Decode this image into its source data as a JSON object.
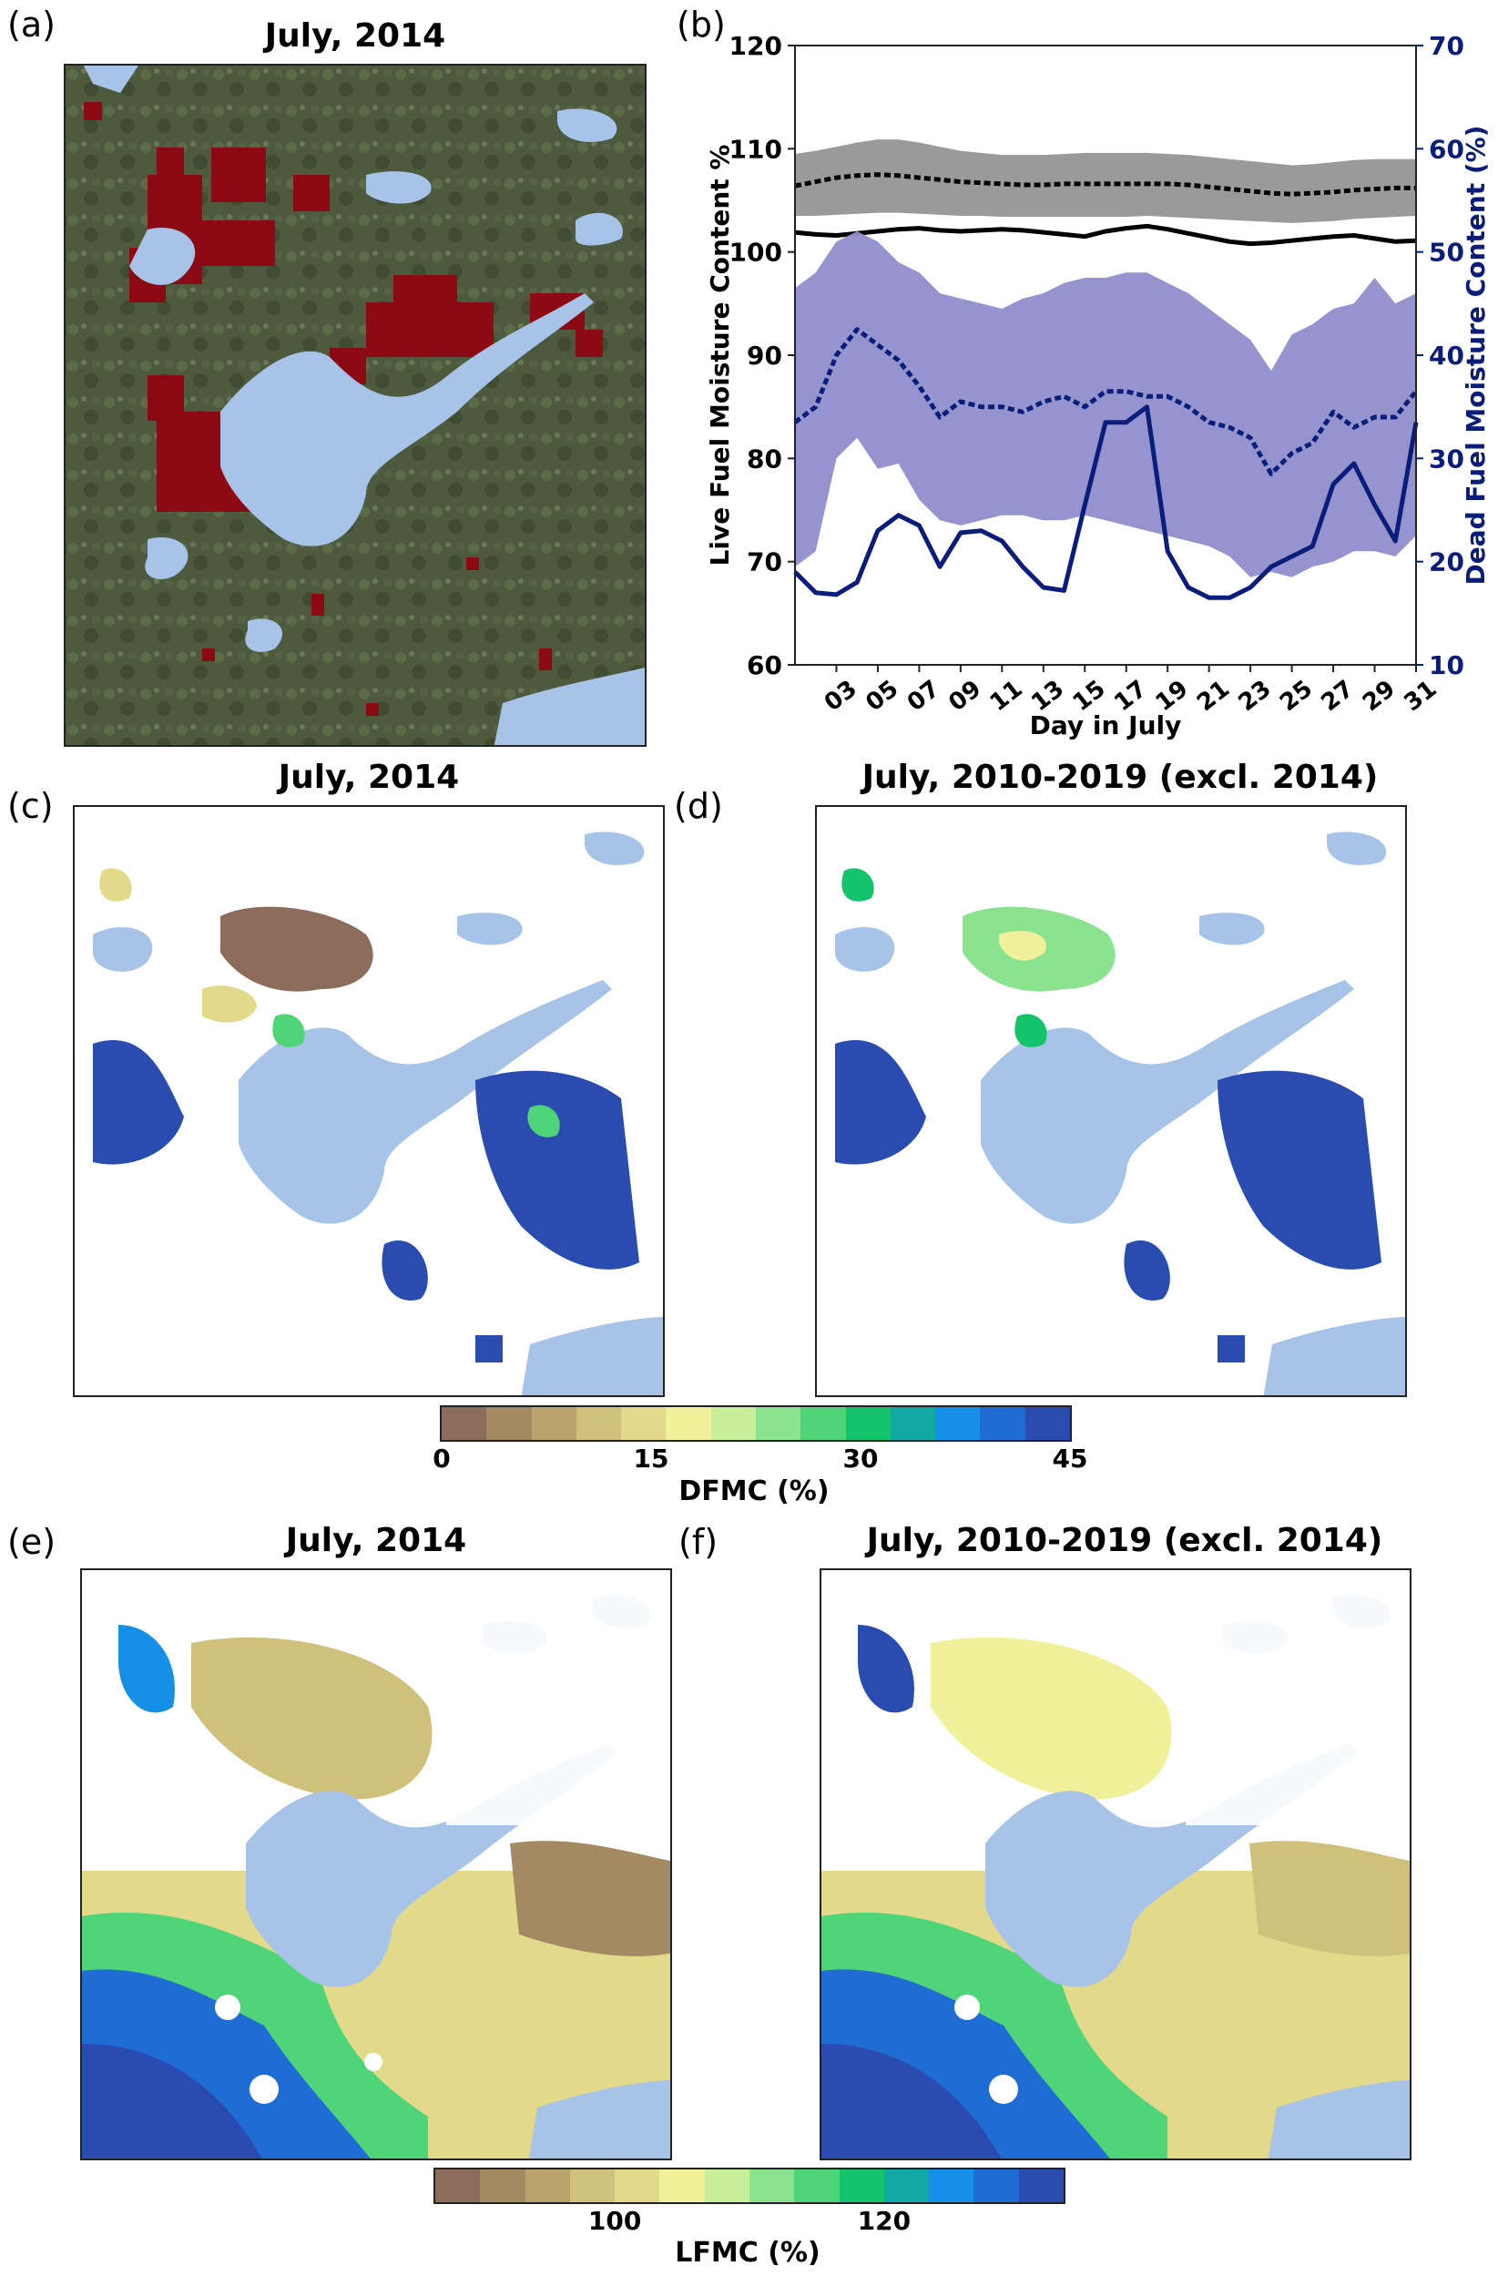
{
  "panels": {
    "a": {
      "label": "(a)",
      "title": "July, 2014"
    },
    "b": {
      "label": "(b)"
    },
    "c": {
      "label": "(c)",
      "title": "July, 2014"
    },
    "d": {
      "label": "(d)",
      "title": "July, 2010-2019 (excl. 2014)"
    },
    "e": {
      "label": "(e)",
      "title": "July, 2014"
    },
    "f": {
      "label": "(f)",
      "title": "July, 2010-2019 (excl. 2014)"
    }
  },
  "colorbars": {
    "dfmc": {
      "label": "DFMC (%)",
      "ticks": [
        "0",
        "15",
        "30",
        "45"
      ],
      "colors": [
        "#8c6d5c",
        "#a38a63",
        "#b9a36c",
        "#cfc17b",
        "#e2da8a",
        "#f0f19a",
        "#c8ef9b",
        "#8be38f",
        "#4fd47a",
        "#14c36b",
        "#12a9a4",
        "#1590e6",
        "#1f6dd4",
        "#2a4cb0"
      ]
    },
    "lfmc": {
      "label": "LFMC (%)",
      "ticks": [
        "100",
        "120"
      ],
      "colors": [
        "#8c6d5c",
        "#a38a63",
        "#b9a36c",
        "#cfc17b",
        "#e2da8a",
        "#f0f19a",
        "#c8ef9b",
        "#8be38f",
        "#4fd47a",
        "#14c36b",
        "#12a9a4",
        "#1590e6",
        "#1f6dd4",
        "#2a4cb0"
      ]
    }
  },
  "colors": {
    "water": "#a8c3e8",
    "burn": "#8b0a14",
    "terrain": "#4c5a3c",
    "dead_line": "#0b1d7a",
    "dead_band": "#8f8ecb",
    "live_band": "#9a9a9a",
    "live_line": "#000000"
  },
  "chart_data": {
    "type": "line",
    "x": [
      "01",
      "02",
      "03",
      "04",
      "05",
      "06",
      "07",
      "08",
      "09",
      "10",
      "11",
      "12",
      "13",
      "14",
      "15",
      "16",
      "17",
      "18",
      "19",
      "20",
      "21",
      "22",
      "23",
      "24",
      "25",
      "26",
      "27",
      "28",
      "29",
      "30",
      "31"
    ],
    "x_tick_labels": [
      "03",
      "05",
      "07",
      "09",
      "11",
      "13",
      "15",
      "17",
      "19",
      "21",
      "23",
      "25",
      "27",
      "29",
      "31"
    ],
    "xlabel": "Day in July",
    "ylabel": "Live Fuel Moisture Content %",
    "ylim": [
      60,
      120
    ],
    "yticks": [
      "60",
      "70",
      "80",
      "90",
      "100",
      "110",
      "120"
    ],
    "y2label": "Dead Fuel Moisture Content (%)",
    "y2lim": [
      10,
      70
    ],
    "y2ticks": [
      "10",
      "20",
      "30",
      "40",
      "50",
      "60",
      "70"
    ],
    "series": [
      {
        "axis": "left",
        "style": "band",
        "lower": [
          103.5,
          103.5,
          103.6,
          103.7,
          103.8,
          103.8,
          103.7,
          103.6,
          103.5,
          103.5,
          103.4,
          103.4,
          103.4,
          103.4,
          103.4,
          103.4,
          103.4,
          103.5,
          103.4,
          103.3,
          103.2,
          103.1,
          103.0,
          102.9,
          102.8,
          102.9,
          103.0,
          103.2,
          103.3,
          103.4,
          103.5
        ],
        "upper": [
          109.5,
          109.8,
          110.2,
          110.6,
          110.9,
          110.9,
          110.6,
          110.2,
          109.8,
          109.6,
          109.4,
          109.4,
          109.4,
          109.5,
          109.6,
          109.6,
          109.6,
          109.6,
          109.5,
          109.4,
          109.2,
          109.0,
          108.8,
          108.6,
          108.4,
          108.5,
          108.7,
          108.9,
          109.0,
          109.0,
          109.0
        ]
      },
      {
        "axis": "left",
        "style": "dotted",
        "values": [
          106.4,
          106.8,
          107.2,
          107.4,
          107.5,
          107.4,
          107.2,
          107.0,
          106.8,
          106.7,
          106.6,
          106.5,
          106.5,
          106.6,
          106.6,
          106.6,
          106.6,
          106.6,
          106.6,
          106.5,
          106.3,
          106.1,
          105.9,
          105.7,
          105.6,
          105.7,
          105.8,
          106.0,
          106.1,
          106.2,
          106.2
        ]
      },
      {
        "axis": "left",
        "style": "solid",
        "values": [
          101.9,
          101.7,
          101.6,
          101.8,
          102.0,
          102.2,
          102.3,
          102.1,
          102.0,
          102.1,
          102.2,
          102.1,
          101.9,
          101.7,
          101.5,
          102.0,
          102.3,
          102.5,
          102.2,
          101.8,
          101.4,
          101.0,
          100.8,
          100.9,
          101.1,
          101.3,
          101.5,
          101.6,
          101.3,
          101.0,
          101.1
        ]
      },
      {
        "axis": "right",
        "style": "band",
        "lower": [
          19.5,
          21.0,
          30.0,
          32.0,
          29.0,
          29.5,
          26.0,
          24.0,
          23.5,
          24.0,
          24.5,
          24.5,
          24.0,
          24.0,
          24.5,
          24.0,
          23.5,
          23.0,
          22.5,
          22.0,
          21.5,
          20.5,
          18.5,
          19.0,
          18.5,
          19.5,
          20.0,
          21.0,
          21.0,
          20.5,
          22.5
        ],
        "upper": [
          46.5,
          48.0,
          51.0,
          52.0,
          51.0,
          49.0,
          48.0,
          46.0,
          45.5,
          45.0,
          44.5,
          45.5,
          46.0,
          47.0,
          47.5,
          47.5,
          48.0,
          48.0,
          47.0,
          46.0,
          44.5,
          43.0,
          41.5,
          38.5,
          42.0,
          43.0,
          44.5,
          45.0,
          47.5,
          45.0,
          46.0
        ]
      },
      {
        "axis": "right",
        "style": "dotted",
        "values": [
          33.5,
          35.0,
          40.0,
          42.5,
          41.0,
          39.5,
          37.0,
          34.0,
          35.5,
          35.0,
          35.0,
          34.5,
          35.5,
          36.0,
          35.0,
          36.5,
          36.5,
          36.0,
          36.0,
          35.0,
          33.5,
          33.0,
          32.0,
          28.5,
          30.5,
          31.5,
          34.5,
          33.0,
          34.0,
          34.0,
          36.5
        ]
      },
      {
        "axis": "right",
        "style": "solid",
        "values": [
          19.0,
          17.0,
          16.8,
          18.0,
          23.0,
          24.5,
          23.5,
          19.5,
          22.8,
          23.0,
          22.0,
          19.5,
          17.5,
          17.2,
          25.5,
          33.5,
          33.5,
          35.0,
          21.0,
          17.5,
          16.5,
          16.5,
          17.5,
          19.5,
          20.5,
          21.5,
          27.5,
          29.5,
          25.5,
          22.0,
          33.5
        ]
      }
    ]
  }
}
